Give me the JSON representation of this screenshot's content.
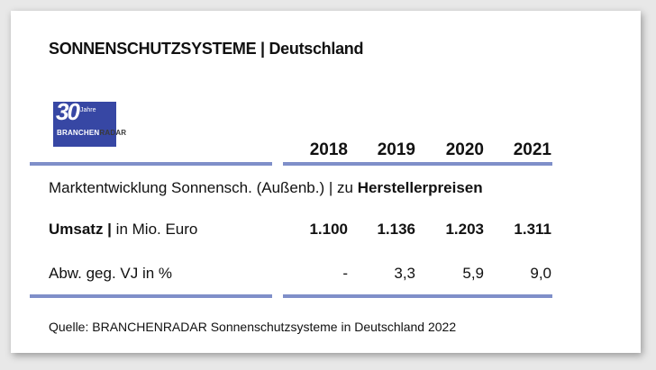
{
  "title": "SONNENSCHUTZSYSTEME | Deutschland",
  "logo": {
    "number": "30",
    "years_label": "Jahre",
    "brand_main": "BRANCHEN",
    "brand_tail": "RADAR",
    "color": "#3747a4"
  },
  "table": {
    "years": [
      "2018",
      "2019",
      "2020",
      "2021"
    ],
    "section_label_prefix": "Marktentwicklung Sonnensch. (Außenb.) | zu ",
    "section_label_bold": "Herstellerpreisen",
    "rows": [
      {
        "label_bold": "Umsatz |",
        "label_rest": " in Mio. Euro",
        "values": [
          "1.100",
          "1.136",
          "1.203",
          "1.311"
        ]
      },
      {
        "label_bold": "",
        "label_rest": "Abw. geg. VJ in %",
        "values": [
          "-",
          "3,3",
          "5,9",
          "9,0"
        ]
      }
    ],
    "rule_color": "#7f8fc9"
  },
  "source": "Quelle: BRANCHENRADAR Sonnenschutzsysteme in Deutschland 2022"
}
